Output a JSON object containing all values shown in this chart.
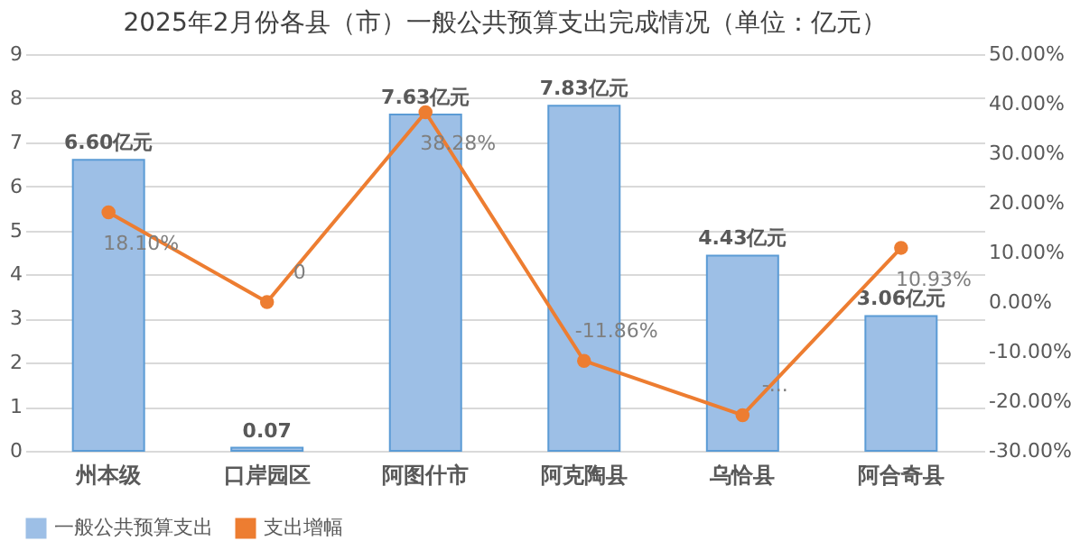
{
  "chart_data": {
    "type": "bar",
    "title": "2025年2月份各县（市）一般公共预算支出完成情况（单位：亿元）",
    "categories": [
      "州本级",
      "口岸园区",
      "阿图什市",
      "阿克陶县",
      "乌恰县",
      "阿合奇县"
    ],
    "series": [
      {
        "name": "一般公共预算支出",
        "color": "#9dbfe6",
        "values": [
          6.6,
          0.07,
          7.63,
          7.83,
          4.43,
          3.06
        ],
        "value_labels": [
          "6.60亿元",
          "0.07",
          "7.63亿元",
          "7.83亿元",
          "4.43亿元",
          "3.06亿元"
        ]
      },
      {
        "name": "支出增幅",
        "type": "line",
        "axis": "y2",
        "color": "#ed7d31",
        "marker": "circle",
        "values": [
          18.1,
          0,
          38.28,
          -11.86,
          -22.8,
          10.93
        ],
        "value_labels": [
          "18.10%",
          "0",
          "38.28%",
          "-11.86%",
          "-...",
          "10.93%"
        ]
      }
    ],
    "ylim": [
      0,
      9
    ],
    "yticks": [
      0,
      1,
      2,
      3,
      4,
      5,
      6,
      7,
      8,
      9
    ],
    "y2lim": [
      -30,
      50
    ],
    "y2ticks": [
      {
        "value": -30,
        "label": "-30.00%"
      },
      {
        "value": -20,
        "label": "-20.00%"
      },
      {
        "value": -10,
        "label": "-10.00%"
      },
      {
        "value": 0,
        "label": "0.00%"
      },
      {
        "value": 10,
        "label": "10.00%"
      },
      {
        "value": 20,
        "label": "20.00%"
      },
      {
        "value": 30,
        "label": "30.00%"
      },
      {
        "value": 40,
        "label": "40.00%"
      },
      {
        "value": 50,
        "label": "50.00%"
      }
    ],
    "grid": "y",
    "legend": "bottom"
  }
}
